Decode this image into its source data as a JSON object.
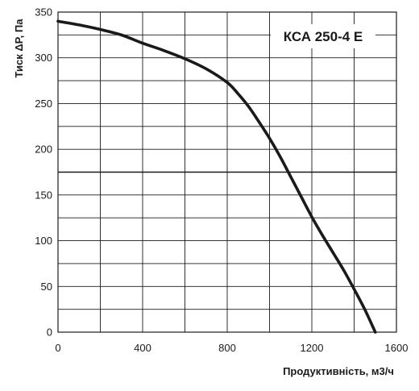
{
  "chart_data": {
    "type": "line",
    "title": "КСА 250-4 Е",
    "xlabel": "Продуктивність, м3/ч",
    "ylabel": "Тиск ΔP, Па",
    "xlim": [
      0,
      1600
    ],
    "ylim": [
      0,
      350
    ],
    "x_ticks": [
      "0",
      "400",
      "800",
      "1200",
      "1600"
    ],
    "y_ticks": [
      "0",
      "50",
      "100",
      "150",
      "200",
      "250",
      "300",
      "350"
    ],
    "grid": true,
    "series": [
      {
        "x": [
          0,
          100,
          200,
          300,
          400,
          500,
          600,
          700,
          800,
          850,
          900,
          950,
          1000,
          1050,
          1100,
          1150,
          1200,
          1250,
          1300,
          1350,
          1400,
          1450,
          1500
        ],
        "y": [
          340,
          336,
          331,
          325,
          316,
          308,
          299,
          288,
          273,
          261,
          247,
          230,
          212,
          192,
          170,
          148,
          126,
          106,
          87,
          68,
          47,
          25,
          0
        ]
      }
    ],
    "reference_lines": [
      {
        "orientation": "horizontal",
        "y": 175
      }
    ]
  }
}
